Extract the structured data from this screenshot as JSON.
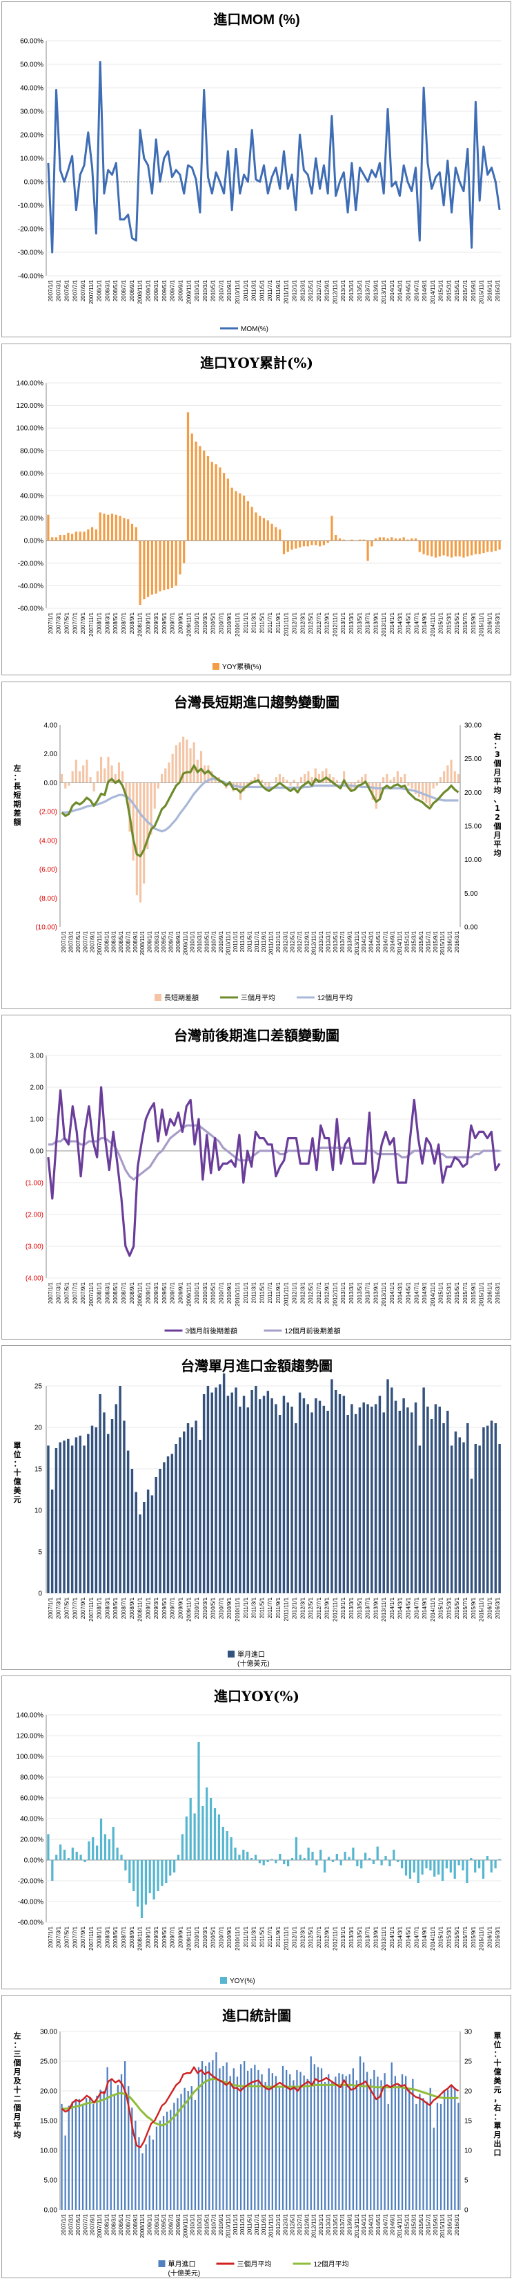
{
  "chart_data": [
    {
      "id": "mom",
      "type": "line",
      "title": "進口MOM (%)",
      "series": [
        {
          "name": "MOM(%)",
          "color": "#3e6db5"
        }
      ],
      "ylim": [
        -0.4,
        0.6
      ],
      "yticks": [
        "60.00%",
        "50.00%",
        "40.00%",
        "30.00%",
        "20.00%",
        "10.00%",
        "0.00%",
        "-10.00%",
        "-20.00%",
        "-30.00%",
        "-40.00%"
      ],
      "values": [
        0.08,
        -0.3,
        0.39,
        0.05,
        0.0,
        0.05,
        0.11,
        -0.12,
        0.03,
        0.07,
        0.21,
        0.06,
        -0.22,
        0.51,
        -0.05,
        0.05,
        0.03,
        0.08,
        -0.16,
        -0.16,
        -0.14,
        -0.24,
        -0.25,
        0.22,
        0.1,
        0.07,
        -0.05,
        0.18,
        0.0,
        0.1,
        0.13,
        0.02,
        0.05,
        0.03,
        -0.05,
        0.07,
        0.06,
        0.01,
        -0.13,
        0.39,
        0.02,
        -0.05,
        0.04,
        0.0,
        -0.05,
        0.13,
        -0.12,
        0.14,
        -0.05,
        0.03,
        0.0,
        0.22,
        0.01,
        0.0,
        0.07,
        -0.05,
        0.02,
        0.06,
        -0.03,
        0.13,
        -0.03,
        0.03,
        -0.12,
        0.2,
        0.05,
        0.03,
        -0.05,
        0.1,
        -0.03,
        0.07,
        -0.05,
        0.28,
        -0.06,
        0.0,
        0.04,
        -0.13,
        0.08,
        -0.12,
        0.06,
        0.03,
        0.0,
        0.05,
        0.02,
        0.08,
        -0.05,
        0.31,
        -0.02,
        0.0,
        -0.06,
        0.07,
        0.0,
        -0.04,
        0.06,
        -0.25,
        0.4,
        0.08,
        -0.03,
        0.02,
        0.04,
        -0.1,
        0.09,
        -0.13,
        0.06,
        0.0,
        -0.04,
        0.14,
        -0.28,
        0.34,
        -0.08,
        0.15,
        0.03,
        0.06,
        0.0,
        -0.12
      ]
    },
    {
      "id": "yoy_cum",
      "type": "bar",
      "title": "進口YOY累計(%)",
      "series": [
        {
          "name": "YOY累積(%)",
          "color": "#f39c43"
        }
      ],
      "ylim": [
        -0.6,
        1.4
      ],
      "yticks": [
        "140.00%",
        "120.00%",
        "100.00%",
        "80.00%",
        "60.00%",
        "40.00%",
        "20.00%",
        "0.00%",
        "-20.00%",
        "-40.00%",
        "-60.00%"
      ],
      "values": [
        0.23,
        0.03,
        0.03,
        0.05,
        0.05,
        0.07,
        0.06,
        0.08,
        0.08,
        0.08,
        0.1,
        0.12,
        0.1,
        0.25,
        0.24,
        0.23,
        0.24,
        0.23,
        0.22,
        0.2,
        0.19,
        0.15,
        0.12,
        -0.57,
        -0.52,
        -0.5,
        -0.48,
        -0.47,
        -0.45,
        -0.44,
        -0.43,
        -0.42,
        -0.4,
        -0.3,
        -0.2,
        1.14,
        0.95,
        0.88,
        0.84,
        0.8,
        0.75,
        0.7,
        0.68,
        0.65,
        0.6,
        0.55,
        0.47,
        0.44,
        0.42,
        0.4,
        0.35,
        0.3,
        0.25,
        0.22,
        0.2,
        0.18,
        0.15,
        0.12,
        0.1,
        -0.12,
        -0.1,
        -0.08,
        -0.07,
        -0.06,
        -0.05,
        -0.05,
        -0.04,
        -0.04,
        -0.05,
        -0.04,
        -0.02,
        0.22,
        0.05,
        0.02,
        0.01,
        0.0,
        0.01,
        0.0,
        0.01,
        0.01,
        -0.18,
        -0.05,
        0.02,
        0.03,
        0.03,
        0.02,
        0.03,
        0.02,
        0.02,
        0.03,
        0.01,
        0.02,
        0.02,
        -0.1,
        -0.12,
        -0.13,
        -0.14,
        -0.15,
        -0.14,
        -0.13,
        -0.14,
        -0.15,
        -0.14,
        -0.14,
        -0.15,
        -0.14,
        -0.13,
        -0.12,
        -0.12,
        -0.11,
        -0.1,
        -0.1,
        -0.09,
        -0.08
      ]
    },
    {
      "id": "long_short",
      "type": "bar-line-combo",
      "title": "台灣長短期進口趨勢變動圖",
      "series": [
        {
          "name": "長短期差額",
          "color": "#f4c4a4",
          "axis": "left"
        },
        {
          "name": "三個月平均",
          "color": "#6e8b2c",
          "axis": "right"
        },
        {
          "name": "12個月平均",
          "color": "#a9b8d8",
          "axis": "right"
        }
      ],
      "yleft_ticks": [
        "4.00",
        "2.00",
        "0.00",
        "(2.00)",
        "(4.00)",
        "(6.00)",
        "(8.00)",
        "(10.00)"
      ],
      "yright_ticks": [
        "30.00",
        "25.00",
        "20.00",
        "15.00",
        "10.00",
        "5.00",
        "0.00"
      ],
      "ylim_left": [
        -10,
        4
      ],
      "ylim_right": [
        0,
        30
      ],
      "left_axis_label": "左：長短期差額",
      "right_axis_label": "右：3個月平均、12個月平均",
      "bars": [
        0.6,
        -0.4,
        -0.2,
        0.8,
        1.6,
        0.8,
        1.2,
        1.6,
        0.4,
        -0.6,
        0.8,
        1.8,
        1.0,
        1.8,
        1.2,
        0.6,
        1.4,
        0.8,
        -1.0,
        -3.4,
        -5.4,
        -7.8,
        -8.3,
        -7.0,
        -4.6,
        -3.6,
        -1.8,
        -0.4,
        0.6,
        1.0,
        1.4,
        2.0,
        2.6,
        2.8,
        3.2,
        3.0,
        2.4,
        2.8,
        1.6,
        2.2,
        1.2,
        1.2,
        0.8,
        0.4,
        0.4,
        0.0,
        -0.4,
        -0.2,
        -0.6,
        -0.4,
        -1.2,
        -0.6,
        -0.2,
        0.2,
        0.4,
        0.6,
        0.2,
        -0.2,
        -0.6,
        0.0,
        0.4,
        0.6,
        0.4,
        0.2,
        -0.2,
        0.2,
        -0.4,
        0.4,
        0.6,
        0.8,
        0.4,
        1.0,
        0.6,
        0.8,
        1.0,
        0.6,
        0.4,
        0.2,
        0.0,
        0.8,
        -0.2,
        -0.6,
        -0.4,
        0.2,
        0.4,
        0.6,
        -0.4,
        -1.2,
        -1.8,
        -1.2,
        0.4,
        0.6,
        0.2,
        0.4,
        0.8,
        0.4,
        0.6,
        -0.2,
        -0.4,
        -0.8,
        -1.0,
        -1.2,
        -1.4,
        -1.6,
        -0.4,
        -0.2,
        0.4,
        0.8,
        1.2,
        1.6,
        0.8,
        0.6
      ],
      "avg3": [
        17.0,
        16.5,
        16.8,
        18.0,
        18.5,
        18.2,
        18.6,
        19.2,
        18.8,
        18.0,
        18.8,
        19.8,
        19.6,
        21.6,
        22.0,
        21.4,
        21.8,
        21.0,
        19.5,
        16.5,
        13.0,
        10.8,
        10.5,
        11.5,
        13.0,
        14.5,
        15.0,
        16.2,
        17.5,
        18.0,
        19.0,
        20.0,
        21.0,
        21.5,
        22.8,
        23.0,
        23.0,
        24.0,
        23.0,
        23.5,
        22.8,
        23.2,
        22.6,
        22.2,
        21.8,
        21.5,
        21.0,
        21.5,
        20.5,
        20.5,
        20.0,
        20.6,
        21.0,
        21.4,
        21.6,
        21.8,
        21.0,
        20.5,
        20.2,
        20.6,
        21.0,
        21.4,
        21.0,
        20.6,
        20.2,
        20.6,
        20.0,
        20.8,
        21.2,
        21.6,
        21.0,
        22.0,
        21.6,
        21.8,
        22.2,
        21.8,
        21.4,
        21.0,
        20.6,
        21.8,
        20.8,
        20.2,
        20.4,
        21.0,
        21.2,
        21.6,
        20.6,
        19.6,
        18.6,
        19.0,
        20.6,
        21.0,
        20.6,
        21.0,
        21.2,
        20.8,
        21.0,
        20.0,
        19.5,
        19.0,
        18.8,
        18.5,
        18.0,
        17.6,
        18.4,
        18.8,
        19.4,
        20.0,
        20.4,
        21.0,
        20.4,
        20.0
      ],
      "avg12": [
        17.0,
        17.0,
        17.1,
        17.2,
        17.4,
        17.5,
        17.7,
        17.9,
        18.0,
        18.1,
        18.2,
        18.4,
        18.6,
        18.9,
        19.2,
        19.4,
        19.6,
        19.6,
        19.4,
        19.0,
        18.3,
        17.6,
        16.8,
        16.2,
        15.6,
        15.2,
        14.6,
        14.4,
        14.2,
        14.4,
        14.8,
        15.4,
        16.0,
        16.8,
        17.5,
        18.2,
        19.0,
        19.8,
        20.4,
        21.0,
        21.5,
        21.8,
        22.0,
        22.0,
        21.8,
        21.6,
        21.4,
        21.2,
        21.0,
        20.9,
        20.8,
        20.8,
        20.8,
        20.8,
        20.8,
        20.8,
        20.8,
        20.7,
        20.7,
        20.7,
        20.7,
        20.7,
        20.7,
        20.7,
        20.7,
        20.7,
        20.7,
        20.7,
        20.8,
        20.8,
        20.9,
        21.0,
        21.0,
        21.0,
        21.0,
        21.0,
        21.0,
        21.0,
        21.0,
        21.0,
        21.0,
        21.0,
        20.9,
        20.9,
        20.8,
        20.8,
        20.8,
        20.7,
        20.6,
        20.6,
        20.6,
        20.6,
        20.6,
        20.6,
        20.6,
        20.6,
        20.5,
        20.4,
        20.3,
        20.2,
        20.0,
        19.8,
        19.6,
        19.4,
        19.2,
        19.0,
        18.9,
        18.8,
        18.8,
        18.8,
        18.8,
        18.8
      ]
    },
    {
      "id": "diff",
      "type": "line",
      "title": "台灣前後期進口差額變動圖",
      "series": [
        {
          "name": "3個月前後期差額",
          "color": "#6a3d9a"
        },
        {
          "name": "12個月前後期差額",
          "color": "#a89cc8"
        }
      ],
      "yticks": [
        "3.00",
        "2.00",
        "1.00",
        "0.00",
        "(1.00)",
        "(2.00)",
        "(3.00)",
        "(4.00)"
      ],
      "ylim": [
        -4,
        3
      ],
      "d3": [
        -0.2,
        -1.5,
        0.3,
        1.9,
        0.4,
        0.2,
        1.4,
        0.6,
        -0.8,
        0.6,
        1.4,
        0.3,
        -0.2,
        2.0,
        0.4,
        -0.6,
        0.6,
        -0.4,
        -1.5,
        -3.0,
        -3.3,
        -3.0,
        -0.5,
        0.3,
        1.0,
        1.3,
        1.5,
        0.3,
        1.3,
        0.5,
        1.0,
        0.8,
        1.2,
        0.6,
        1.4,
        1.6,
        0.2,
        1.0,
        -0.9,
        0.5,
        -0.7,
        0.4,
        -0.6,
        -0.4,
        -0.4,
        -0.3,
        -0.5,
        0.5,
        -1.0,
        0.0,
        -0.5,
        0.6,
        0.4,
        0.4,
        0.2,
        0.2,
        -0.8,
        -0.5,
        -0.3,
        0.4,
        0.4,
        0.4,
        -0.4,
        -0.4,
        -0.4,
        0.4,
        -0.6,
        0.8,
        0.4,
        0.4,
        -0.6,
        1.0,
        -0.4,
        0.2,
        0.4,
        -0.4,
        -0.4,
        -0.4,
        -0.4,
        1.2,
        -1.0,
        -0.6,
        0.2,
        0.6,
        0.2,
        0.4,
        -1.0,
        -1.0,
        -1.0,
        0.4,
        1.6,
        0.4,
        -0.4,
        0.4,
        0.2,
        -0.4,
        0.2,
        -1.0,
        -0.5,
        -0.5,
        -0.2,
        -0.3,
        -0.5,
        -0.4,
        0.8,
        0.4,
        0.6,
        0.6,
        0.4,
        0.6,
        -0.6,
        -0.4
      ],
      "d12": [
        0.2,
        0.2,
        0.3,
        0.3,
        0.4,
        0.3,
        0.3,
        0.3,
        0.2,
        0.2,
        0.3,
        0.3,
        0.3,
        0.4,
        0.4,
        0.3,
        0.2,
        0.0,
        -0.3,
        -0.6,
        -0.8,
        -0.9,
        -0.8,
        -0.7,
        -0.6,
        -0.5,
        -0.3,
        -0.1,
        0.0,
        0.2,
        0.4,
        0.5,
        0.6,
        0.7,
        0.8,
        0.8,
        0.8,
        0.8,
        0.7,
        0.6,
        0.5,
        0.4,
        0.3,
        0.1,
        0.0,
        -0.1,
        -0.2,
        -0.3,
        -0.3,
        -0.3,
        -0.2,
        -0.1,
        0.0,
        0.0,
        0.0,
        0.0,
        0.0,
        -0.1,
        -0.1,
        0.0,
        0.0,
        0.0,
        0.0,
        0.0,
        0.0,
        0.0,
        0.0,
        0.1,
        0.1,
        0.1,
        0.1,
        0.1,
        0.1,
        0.1,
        0.1,
        0.0,
        0.0,
        0.0,
        0.0,
        0.0,
        0.0,
        -0.1,
        -0.1,
        -0.1,
        -0.1,
        -0.1,
        -0.1,
        -0.2,
        -0.2,
        -0.1,
        0.0,
        0.0,
        0.0,
        0.0,
        0.0,
        0.0,
        -0.1,
        -0.1,
        -0.2,
        -0.2,
        -0.2,
        -0.2,
        -0.2,
        -0.2,
        -0.2,
        -0.1,
        -0.1,
        0.0,
        0.0,
        0.0,
        0.0,
        0.0
      ]
    },
    {
      "id": "monthly",
      "type": "bar",
      "title": "台灣單月進口金額趨勢圖",
      "series": [
        {
          "name": "單月進口",
          "sub": "(十億美元)",
          "color": "#34527e"
        }
      ],
      "yticks": [
        "25",
        "20",
        "15",
        "10",
        "5",
        "0"
      ],
      "ylim": [
        0,
        25
      ],
      "y_axis_label": "單位：十億美元",
      "values": [
        17.8,
        12.5,
        17.5,
        18.2,
        18.4,
        18.6,
        17.8,
        18.8,
        19.0,
        17.8,
        19.2,
        20.2,
        20.0,
        24.0,
        21.8,
        19.2,
        21.0,
        22.8,
        25.0,
        20.8,
        17.2,
        15.0,
        12.2,
        9.5,
        11.0,
        12.5,
        11.8,
        14.0,
        15.0,
        15.8,
        16.5,
        16.8,
        18.0,
        18.8,
        19.5,
        20.5,
        20.0,
        20.8,
        18.5,
        24.0,
        25.0,
        24.2,
        24.8,
        25.2,
        26.5,
        23.8,
        24.2,
        24.8,
        22.5,
        23.8,
        22.4,
        24.5,
        25.0,
        23.4,
        23.8,
        24.4,
        23.5,
        22.8,
        21.5,
        23.8,
        23.0,
        22.5,
        20.5,
        24.2,
        23.5,
        22.8,
        21.8,
        23.5,
        23.2,
        22.6,
        22.0,
        25.8,
        24.5,
        24.0,
        23.8,
        21.5,
        22.8,
        21.6,
        22.4,
        23.0,
        22.8,
        22.5,
        22.8,
        23.8,
        21.8,
        25.8,
        24.8,
        23.2,
        22.0,
        23.5,
        22.4,
        21.8,
        23.0,
        17.8,
        24.8,
        22.5,
        21.0,
        22.8,
        22.5,
        20.5,
        22.0,
        17.8,
        19.5,
        18.8,
        18.2,
        20.5,
        13.8,
        18.0,
        17.8,
        20.0,
        20.2,
        20.8,
        20.5,
        18.0
      ]
    },
    {
      "id": "yoy",
      "type": "bar",
      "title": "進口YOY(%)",
      "series": [
        {
          "name": "YOY(%)",
          "color": "#56b6d0"
        }
      ],
      "yticks": [
        "140.00%",
        "120.00%",
        "100.00%",
        "80.00%",
        "60.00%",
        "40.00%",
        "20.00%",
        "0.00%",
        "-20.00%",
        "-40.00%",
        "-60.00%"
      ],
      "ylim": [
        -0.6,
        1.4
      ],
      "values": [
        0.25,
        -0.2,
        0.05,
        0.15,
        0.1,
        0.02,
        0.12,
        0.08,
        0.05,
        -0.02,
        0.18,
        0.22,
        0.14,
        0.4,
        0.25,
        0.2,
        0.32,
        0.12,
        0.05,
        -0.1,
        -0.22,
        -0.3,
        -0.45,
        -0.56,
        -0.43,
        -0.32,
        -0.38,
        -0.3,
        -0.25,
        -0.22,
        -0.15,
        -0.12,
        0.05,
        0.25,
        0.42,
        0.6,
        0.45,
        1.14,
        0.52,
        0.7,
        0.6,
        0.5,
        0.44,
        0.32,
        0.28,
        0.22,
        0.12,
        0.05,
        0.1,
        0.08,
        0.02,
        0.05,
        -0.03,
        -0.05,
        -0.02,
        0.01,
        -0.03,
        0.06,
        -0.04,
        -0.06,
        0.02,
        0.22,
        0.05,
        0.02,
        0.12,
        0.08,
        -0.05,
        0.1,
        -0.12,
        0.03,
        -0.02,
        0.06,
        -0.05,
        0.08,
        0.03,
        0.12,
        -0.06,
        -0.08,
        0.07,
        0.02,
        -0.04,
        0.13,
        -0.05,
        0.04,
        -0.06,
        0.1,
        -0.02,
        -0.08,
        -0.15,
        -0.18,
        -0.12,
        -0.22,
        -0.14,
        -0.08,
        -0.1,
        -0.16,
        -0.14,
        -0.2,
        -0.08,
        -0.12,
        -0.18,
        -0.05,
        -0.1,
        -0.22,
        0.02,
        -0.12,
        -0.08,
        -0.18,
        0.04,
        -0.12,
        -0.08,
        0.01
      ]
    },
    {
      "id": "stats",
      "type": "bar-line-combo",
      "title": "進口統計圖",
      "series": [
        {
          "name": "單月進口",
          "sub": "(十億美元)",
          "color": "#5080c0",
          "axis": "right"
        },
        {
          "name": "三個月平均",
          "color": "#d02020",
          "axis": "left"
        },
        {
          "name": "12個月平均",
          "color": "#8fbc3a",
          "axis": "left"
        }
      ],
      "yleft_ticks": [
        "30.00",
        "25.00",
        "20.00",
        "15.00",
        "10.00",
        "5.00",
        "0.00"
      ],
      "yright_ticks": [
        "30",
        "25",
        "20",
        "15",
        "10",
        "5",
        "0"
      ],
      "ylim_left": [
        0,
        30
      ],
      "ylim_right": [
        0,
        30
      ],
      "left_axis_label": "左：三個月及十二個月平均",
      "right_axis_label": "單位：十億美元，右：單月出口"
    }
  ],
  "x_labels": [
    "2007/1/1",
    "2007/3/1",
    "2007/5/1",
    "2007/7/1",
    "2007/9/1",
    "2007/11/1",
    "2008/1/1",
    "2008/3/1",
    "2008/5/1",
    "2008/7/1",
    "2008/9/1",
    "2008/11/1",
    "2009/1/1",
    "2009/3/1",
    "2009/5/1",
    "2009/7/1",
    "2009/9/1",
    "2009/11/1",
    "2010/1/1",
    "2010/3/1",
    "2010/5/1",
    "2010/7/1",
    "2010/9/1",
    "2010/11/1",
    "2011/1/1",
    "2011/3/1",
    "2011/5/1",
    "2011/7/1",
    "2011/9/1",
    "2011/11/1",
    "2012/1/1",
    "2012/3/1",
    "2012/5/1",
    "2012/7/1",
    "2012/9/1",
    "2012/11/1",
    "2013/1/1",
    "2013/3/1",
    "2013/5/1",
    "2013/7/1",
    "2013/9/1",
    "2013/11/1",
    "2014/1/1",
    "2014/3/1",
    "2014/5/1",
    "2014/7/1",
    "2014/9/1",
    "2014/11/1",
    "2015/1/1",
    "2015/3/1",
    "2015/5/1",
    "2015/7/1",
    "2015/9/1",
    "2015/11/1",
    "2016/1/1",
    "2016/3/1"
  ]
}
